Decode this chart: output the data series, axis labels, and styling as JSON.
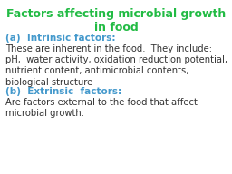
{
  "title_line1": "Factors affecting microbial growth",
  "title_line2": "in food",
  "title_color": "#22bb44",
  "title_fontsize": 9.0,
  "section_a_label": "(a)  Intrinsic factors:",
  "section_a_color": "#4499cc",
  "section_a_fontsize": 7.5,
  "body1": "These are inherent in the food.  They include:",
  "body2_line1": "pH,  water activity, oxidation reduction potential,",
  "body2_line2": "nutrient content, antimicrobial contents,",
  "body2_line3": "biological structure",
  "body_color": "#333333",
  "body_fontsize": 7.2,
  "section_b_label": "(b)  Extrinsic  factors:",
  "section_b_color": "#4499cc",
  "section_b_fontsize": 7.5,
  "body3_line1": "Are factors external to the food that affect",
  "body3_line2": "microbial growth.",
  "background_color": "#ffffff"
}
